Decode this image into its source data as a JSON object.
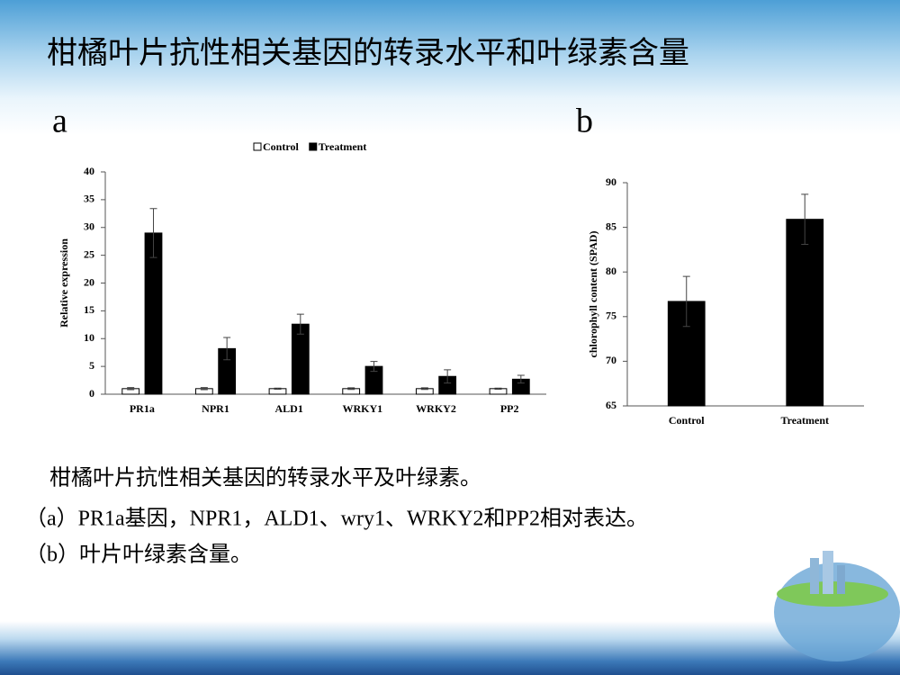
{
  "title": "柑橘叶片抗性相关基因的转录水平和叶绿素含量",
  "panel_labels": [
    "a",
    "b"
  ],
  "caption": [
    "柑橘叶片抗性相关基因的转录水平及叶绿素。",
    "（a）PR1a基因，NPR1，ALD1、wry1、WRKY2和PP2相对表达。",
    "（b）叶片叶绿素含量。"
  ],
  "chart_data": [
    {
      "type": "bar",
      "y_label": "Relative expression",
      "categories": [
        "PR1a",
        "NPR1",
        "ALD1",
        "WRKY1",
        "WRKY2",
        "PP2"
      ],
      "series": [
        {
          "name": "Control",
          "color": "#ffffff",
          "values": [
            1,
            1,
            1,
            1,
            1,
            1
          ],
          "errors": [
            0.2,
            0.2,
            0.1,
            0.15,
            0.15,
            0.1
          ]
        },
        {
          "name": "Treatment",
          "color": "#000000",
          "values": [
            29,
            8.2,
            12.6,
            5,
            3.2,
            2.7
          ],
          "errors": [
            4.4,
            2,
            1.8,
            0.9,
            1.2,
            0.7
          ]
        }
      ],
      "ylim": [
        0,
        40
      ],
      "yticks": [
        0,
        5,
        10,
        15,
        20,
        25,
        30,
        35,
        40
      ],
      "legend": "top"
    },
    {
      "type": "bar",
      "y_label": "chlorophyll content (SPAD)",
      "categories": [
        "Control",
        "Treatment"
      ],
      "values": [
        76.7,
        85.9
      ],
      "errors": [
        2.8,
        2.8
      ],
      "color": "#000000",
      "ylim": [
        65,
        90
      ],
      "yticks": [
        65,
        70,
        75,
        80,
        85,
        90
      ]
    }
  ]
}
